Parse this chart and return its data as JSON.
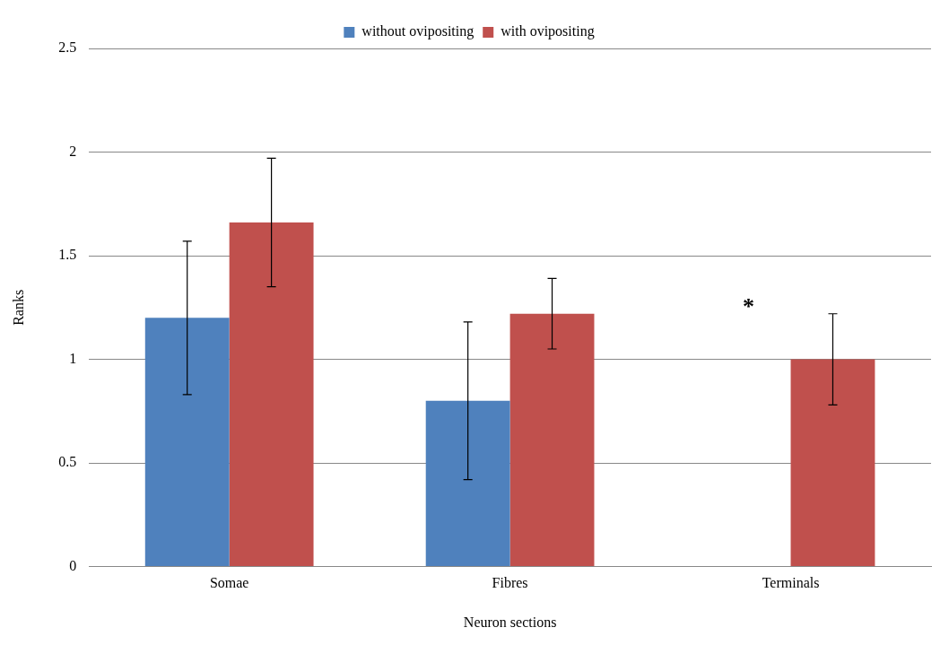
{
  "chart_data": {
    "type": "bar",
    "xlabel": "Neuron sections",
    "ylabel": "Ranks",
    "categories": [
      "Somae",
      "Fibres",
      "Terminals"
    ],
    "series": [
      {
        "name": "without ovipositing",
        "color": "#4f81bd",
        "values": [
          1.2,
          0.8,
          0
        ],
        "errors": [
          0.37,
          0.38,
          null
        ]
      },
      {
        "name": "with ovipositing",
        "color": "#c0504d",
        "values": [
          1.66,
          1.22,
          1.0
        ],
        "errors": [
          0.31,
          0.17,
          0.22
        ]
      }
    ],
    "ylim": [
      0,
      2.5
    ],
    "yticks": [
      0,
      0.5,
      1,
      1.5,
      2,
      2.5
    ],
    "grid": "y",
    "legend": "top",
    "annotations": [
      "*"
    ]
  }
}
